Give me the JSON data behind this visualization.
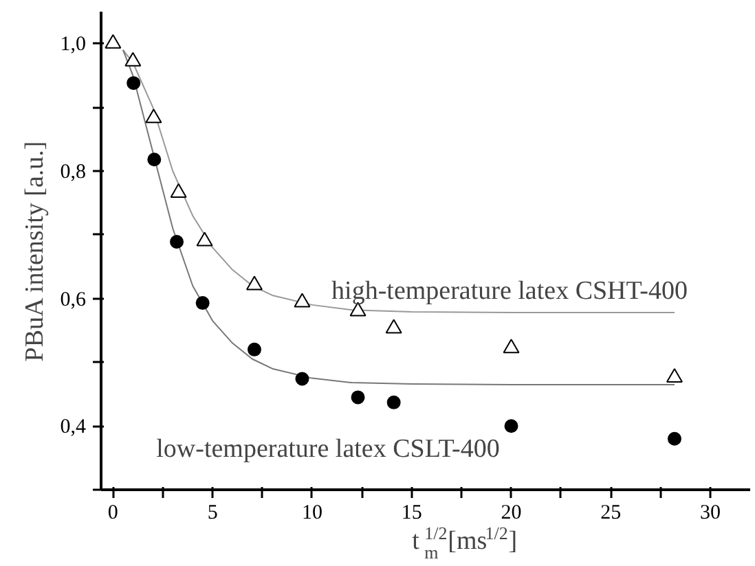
{
  "chart_data": {
    "type": "scatter",
    "xlabel": "t$_{m}$$^{1/2}$[ms$^{1/2}$]",
    "ylabel": "PBuA intensity [a.u.]",
    "xlim": [
      -0.6,
      32
    ],
    "ylim": [
      0.3,
      1.05
    ],
    "xticks": [
      0,
      {
        "value": 2.5,
        "label": null
      },
      5,
      {
        "value": 7.5,
        "label": null
      },
      10,
      {
        "value": 12.5,
        "label": null
      },
      15,
      {
        "value": 17.5,
        "label": null
      },
      20,
      {
        "value": 22.5,
        "label": null
      },
      25,
      {
        "value": 27.5,
        "label": null
      },
      30
    ],
    "yticks": [
      {
        "value": 0.3,
        "label": null
      },
      {
        "value": 0.4,
        "label": "0,4"
      },
      {
        "value": 0.5,
        "label": null
      },
      {
        "value": 0.6,
        "label": "0,6"
      },
      {
        "value": 0.7,
        "label": null
      },
      {
        "value": 0.8,
        "label": "0,8"
      },
      {
        "value": 0.9,
        "label": null
      },
      {
        "value": 1.0,
        "label": "1,0"
      }
    ],
    "grid": false,
    "series": [
      {
        "type": "line",
        "color": "#999999",
        "marker": "none",
        "x": [
          0.5,
          1,
          2,
          3,
          4,
          5,
          6,
          7,
          8,
          10,
          12,
          15,
          20,
          28.2
        ],
        "values": [
          0.99,
          0.97,
          0.9,
          0.8,
          0.73,
          0.68,
          0.645,
          0.62,
          0.605,
          0.59,
          0.582,
          0.579,
          0.578,
          0.578
        ]
      },
      {
        "type": "line",
        "color": "#777777",
        "marker": "none",
        "x": [
          0.5,
          1,
          2,
          3,
          4,
          5,
          6,
          7,
          8,
          10,
          12,
          15,
          20,
          28.2
        ],
        "values": [
          0.99,
          0.95,
          0.83,
          0.71,
          0.62,
          0.565,
          0.53,
          0.505,
          0.49,
          0.475,
          0.468,
          0.466,
          0.465,
          0.465
        ]
      },
      {
        "color": "#000000",
        "marker": "triangle",
        "x": [
          0,
          1.0,
          2.04,
          3.29,
          4.6,
          7.1,
          9.5,
          12.3,
          14.1,
          20.0,
          28.2
        ],
        "values": [
          1.0,
          0.972,
          0.883,
          0.766,
          0.69,
          0.621,
          0.594,
          0.58,
          0.553,
          0.522,
          0.476
        ]
      },
      {
        "color": "#000000",
        "marker": "circle",
        "x": [
          1.03,
          2.07,
          3.2,
          4.5,
          7.1,
          9.5,
          12.3,
          14.1,
          20.0,
          28.2
        ],
        "values": [
          0.938,
          0.818,
          0.689,
          0.593,
          0.52,
          0.474,
          0.445,
          0.437,
          0.4,
          0.38
        ]
      }
    ],
    "annotations": [
      "high-temperature latex CSHT-400",
      "low-temperature latex CSLT-400"
    ]
  }
}
